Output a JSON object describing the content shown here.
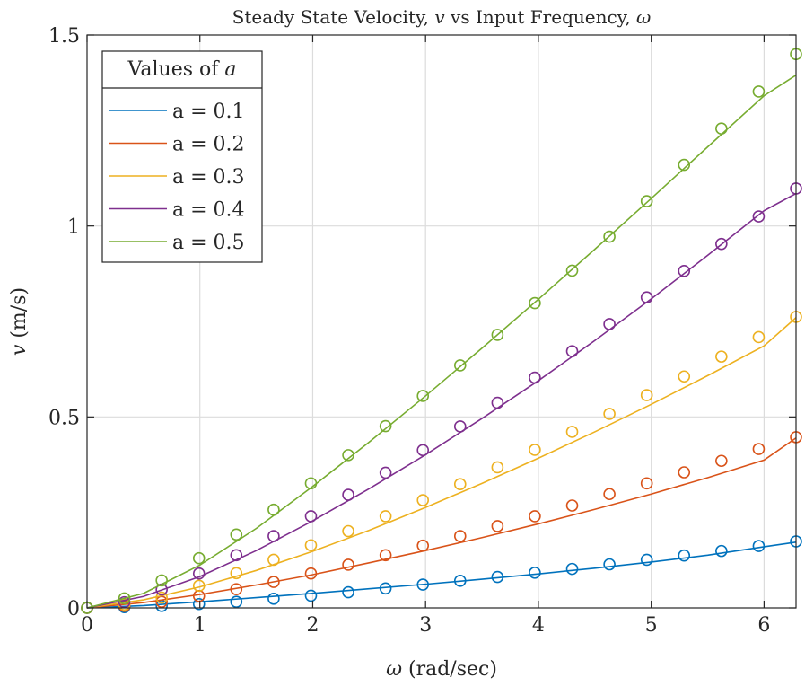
{
  "chart_data": {
    "type": "line",
    "title": "Steady State Velocity, v vs Input Frequency, ω",
    "title_parts": {
      "prefix": "Steady State Velocity, ",
      "v": "v",
      "middle": " vs Input Frequency, ",
      "omega": "ω"
    },
    "xlabel": "ω (rad/sec)",
    "xlabel_parts": {
      "omega": "ω",
      "rest": " (rad/sec)"
    },
    "ylabel": "v (m/s)",
    "ylabel_parts": {
      "v": "v",
      "rest": " (m/s)"
    },
    "xlim": [
      0,
      6.2832
    ],
    "ylim": [
      0,
      1.5
    ],
    "xticks": [
      0,
      1,
      2,
      3,
      4,
      5,
      6
    ],
    "xtick_labels": [
      "0",
      "1",
      "2",
      "3",
      "4",
      "5",
      "6"
    ],
    "yticks": [
      0,
      0.5,
      1,
      1.5
    ],
    "ytick_labels": [
      "0",
      "0.5",
      "1",
      "1.5"
    ],
    "grid": true,
    "legend": {
      "title_prefix": "Values of ",
      "title_var": "a",
      "title": "Values of a",
      "placement": "top-left",
      "entries": [
        "a = 0.1",
        "a = 0.2",
        "a = 0.3",
        "a = 0.4",
        "a = 0.5"
      ]
    },
    "series": [
      {
        "name": "a = 0.1",
        "color": "#0072BD",
        "line": {
          "x": [
            0,
            0.5,
            1,
            1.5,
            2,
            2.5,
            3,
            3.5,
            4,
            4.5,
            5,
            5.5,
            6,
            6.2832
          ],
          "y": [
            0,
            0.006,
            0.016,
            0.027,
            0.038,
            0.05,
            0.062,
            0.075,
            0.089,
            0.104,
            0.12,
            0.138,
            0.16,
            0.172
          ]
        },
        "markers": {
          "x": [
            0,
            0.3307,
            0.6614,
            0.9921,
            1.3228,
            1.6535,
            1.9842,
            2.3149,
            2.6456,
            2.9763,
            3.3069,
            3.6376,
            3.9683,
            4.299,
            4.6297,
            4.9604,
            5.2911,
            5.6218,
            5.9525,
            6.2832
          ],
          "y": [
            0,
            0.002,
            0.005,
            0.01,
            0.016,
            0.024,
            0.032,
            0.041,
            0.051,
            0.061,
            0.071,
            0.081,
            0.092,
            0.102,
            0.114,
            0.126,
            0.137,
            0.149,
            0.162,
            0.174
          ]
        }
      },
      {
        "name": "a = 0.2",
        "color": "#D95319",
        "line": {
          "x": [
            0,
            0.5,
            1,
            1.5,
            2,
            2.5,
            3,
            3.5,
            4,
            4.5,
            5,
            5.5,
            6,
            6.2832
          ],
          "y": [
            0,
            0.014,
            0.035,
            0.06,
            0.087,
            0.118,
            0.15,
            0.184,
            0.22,
            0.258,
            0.298,
            0.341,
            0.387,
            0.445
          ]
        },
        "markers": {
          "x": [
            0,
            0.3307,
            0.6614,
            0.9921,
            1.3228,
            1.6535,
            1.9842,
            2.3149,
            2.6456,
            2.9763,
            3.3069,
            3.6376,
            3.9683,
            4.299,
            4.6297,
            4.9604,
            5.2911,
            5.6218,
            5.9525,
            6.2832
          ],
          "y": [
            0,
            0.005,
            0.016,
            0.031,
            0.049,
            0.068,
            0.09,
            0.113,
            0.138,
            0.163,
            0.188,
            0.214,
            0.24,
            0.268,
            0.298,
            0.326,
            0.355,
            0.385,
            0.416,
            0.447
          ]
        }
      },
      {
        "name": "a = 0.3",
        "color": "#EDB120",
        "line": {
          "x": [
            0,
            0.5,
            1,
            1.5,
            2,
            2.5,
            3,
            3.5,
            4,
            4.5,
            5,
            5.5,
            6,
            6.2832
          ],
          "y": [
            0,
            0.021,
            0.055,
            0.098,
            0.148,
            0.203,
            0.263,
            0.326,
            0.392,
            0.461,
            0.533,
            0.608,
            0.686,
            0.76
          ]
        },
        "markers": {
          "x": [
            0,
            0.3307,
            0.6614,
            0.9921,
            1.3228,
            1.6535,
            1.9842,
            2.3149,
            2.6456,
            2.9763,
            3.3069,
            3.6376,
            3.9683,
            4.299,
            4.6297,
            4.9604,
            5.2911,
            5.6218,
            5.9525,
            6.2832
          ],
          "y": [
            0,
            0.009,
            0.027,
            0.058,
            0.091,
            0.126,
            0.164,
            0.201,
            0.24,
            0.282,
            0.324,
            0.368,
            0.414,
            0.461,
            0.508,
            0.557,
            0.606,
            0.658,
            0.709,
            0.762
          ]
        }
      },
      {
        "name": "a = 0.4",
        "color": "#7E2F8E",
        "line": {
          "x": [
            0,
            0.5,
            1,
            1.5,
            2,
            2.5,
            3,
            3.5,
            4,
            4.5,
            5,
            5.5,
            6,
            6.2832
          ],
          "y": [
            0,
            0.03,
            0.082,
            0.15,
            0.228,
            0.312,
            0.401,
            0.496,
            0.595,
            0.7,
            0.809,
            0.923,
            1.04,
            1.085
          ]
        },
        "markers": {
          "x": [
            0,
            0.3307,
            0.6614,
            0.9921,
            1.3228,
            1.6535,
            1.9842,
            2.3149,
            2.6456,
            2.9763,
            3.3069,
            3.6376,
            3.9683,
            4.299,
            4.6297,
            4.9604,
            5.2911,
            5.6218,
            5.9525,
            6.2832
          ],
          "y": [
            0,
            0.015,
            0.048,
            0.09,
            0.138,
            0.188,
            0.24,
            0.296,
            0.354,
            0.413,
            0.475,
            0.537,
            0.603,
            0.672,
            0.743,
            0.813,
            0.882,
            0.953,
            1.025,
            1.098
          ]
        }
      },
      {
        "name": "a = 0.5",
        "color": "#77AC30",
        "line": {
          "x": [
            0,
            0.5,
            1,
            1.5,
            2,
            2.5,
            3,
            3.5,
            4,
            4.5,
            5,
            5.5,
            6,
            6.2832
          ],
          "y": [
            0,
            0.038,
            0.112,
            0.208,
            0.318,
            0.434,
            0.555,
            0.68,
            0.808,
            0.939,
            1.072,
            1.207,
            1.341,
            1.395
          ]
        },
        "markers": {
          "x": [
            0,
            0.3307,
            0.6614,
            0.9921,
            1.3228,
            1.6535,
            1.9842,
            2.3149,
            2.6456,
            2.9763,
            3.3069,
            3.6376,
            3.9683,
            4.299,
            4.6297,
            4.9604,
            5.2911,
            5.6218,
            5.9525,
            6.2832
          ],
          "y": [
            0,
            0.025,
            0.072,
            0.13,
            0.192,
            0.257,
            0.326,
            0.4,
            0.476,
            0.555,
            0.635,
            0.715,
            0.798,
            0.883,
            0.972,
            1.065,
            1.16,
            1.255,
            1.352,
            1.45
          ]
        }
      }
    ]
  }
}
